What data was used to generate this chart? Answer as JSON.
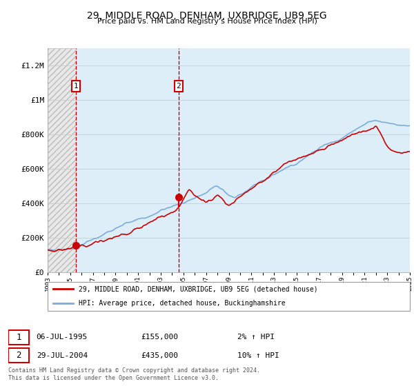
{
  "title": "29, MIDDLE ROAD, DENHAM, UXBRIDGE, UB9 5EG",
  "subtitle": "Price paid vs. HM Land Registry's House Price Index (HPI)",
  "legend_line1": "29, MIDDLE ROAD, DENHAM, UXBRIDGE, UB9 5EG (detached house)",
  "legend_line2": "HPI: Average price, detached house, Buckinghamshire",
  "transaction1_date": "06-JUL-1995",
  "transaction1_price": "£155,000",
  "transaction1_hpi": "2% ↑ HPI",
  "transaction2_date": "29-JUL-2004",
  "transaction2_price": "£435,000",
  "transaction2_hpi": "10% ↑ HPI",
  "footnote": "Contains HM Land Registry data © Crown copyright and database right 2024.\nThis data is licensed under the Open Government Licence v3.0.",
  "sale_color": "#cc0000",
  "hpi_color": "#7aaddb",
  "hatch_color": "#d0d0d0",
  "light_blue_bg": "#ddeef8",
  "ylim": [
    0,
    1300000
  ],
  "yticks": [
    0,
    200000,
    400000,
    600000,
    800000,
    1000000,
    1200000
  ],
  "ytick_labels": [
    "£0",
    "£200K",
    "£400K",
    "£600K",
    "£800K",
    "£1M",
    "£1.2M"
  ],
  "year_start": 1993,
  "year_end": 2025,
  "transaction1_year": 1995.5,
  "transaction2_year": 2004.58,
  "transaction1_price_val": 155000,
  "transaction2_price_val": 435000
}
